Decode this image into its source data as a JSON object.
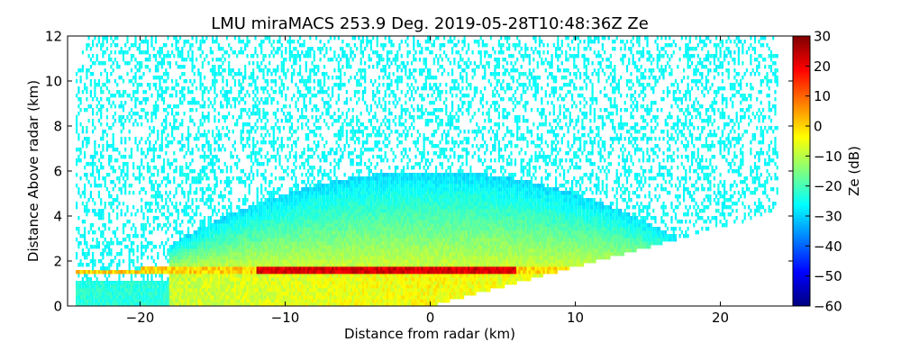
{
  "chart_data": {
    "type": "heatmap",
    "title": "LMU miraMACS 253.9 Deg. 2019-05-28T10:48:36Z  Ze",
    "xlabel": "Distance from radar (km)",
    "ylabel": "Distance Above radar  (km)",
    "xlim": [
      -25,
      25
    ],
    "ylim": [
      0,
      12
    ],
    "x_ticks": [
      {
        "value": -20,
        "label": "−20"
      },
      {
        "value": -10,
        "label": "−10"
      },
      {
        "value": 0,
        "label": "0"
      },
      {
        "value": 10,
        "label": "10"
      },
      {
        "value": 20,
        "label": "20"
      }
    ],
    "y_ticks": [
      {
        "value": 0,
        "label": "0"
      },
      {
        "value": 2,
        "label": "2"
      },
      {
        "value": 4,
        "label": "4"
      },
      {
        "value": 6,
        "label": "6"
      },
      {
        "value": 8,
        "label": "8"
      },
      {
        "value": 10,
        "label": "10"
      },
      {
        "value": 12,
        "label": "12"
      }
    ],
    "colorbar": {
      "label": "Ze (dB)",
      "range": [
        -60,
        30
      ],
      "colormap": "jet",
      "colors": [
        "#00007f",
        "#0000ff",
        "#007fff",
        "#00ffff",
        "#7fff7f",
        "#ffff00",
        "#ff7f00",
        "#ff0000",
        "#7f0000"
      ],
      "ticks": [
        {
          "value": 30,
          "label": "30"
        },
        {
          "value": 20,
          "label": "20"
        },
        {
          "value": 10,
          "label": "10"
        },
        {
          "value": 0,
          "label": "0"
        },
        {
          "value": -10,
          "label": "−10"
        },
        {
          "value": -20,
          "label": "−20"
        },
        {
          "value": -30,
          "label": "−30"
        },
        {
          "value": -40,
          "label": "−40"
        },
        {
          "value": -50,
          "label": "−50"
        },
        {
          "value": -60,
          "label": "−60"
        }
      ]
    },
    "scan": {
      "azimuth_deg": 253.9,
      "time": "2019-05-28T10:48:36Z",
      "variable": "Ze",
      "features": {
        "melting_layer_height_km": 1.6,
        "melting_layer_peak_dB": 25,
        "stratiform_layer_top_km": 6.0,
        "stratiform_dB": -10,
        "sparse_noise_dB": -28,
        "ground_clutter_edge_right_km": [
          23.5,
          4.1
        ]
      }
    }
  }
}
